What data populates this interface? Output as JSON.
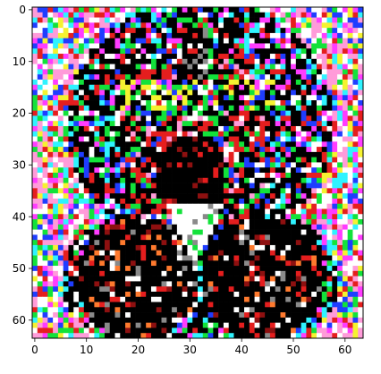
{
  "plot": {
    "kind": "pixel-image",
    "grid_size": 64,
    "x_ticks": [
      "0",
      "10",
      "20",
      "30",
      "40",
      "50",
      "60"
    ],
    "y_ticks": [
      "0",
      "10",
      "20",
      "30",
      "40",
      "50",
      "60"
    ],
    "colors": {
      "black": "#000000",
      "white": "#ffffff",
      "red": "#e51e1e",
      "green": "#12e23a",
      "blue": "#1f3dff",
      "magenta": "#ff3cff",
      "pink": "#ff9bd9",
      "cyan": "#2ff3ff",
      "yellow": "#f5f230",
      "grey": "#8a8a8a",
      "dark_red": "#8e1010",
      "orange": "#ff7a2e"
    }
  }
}
